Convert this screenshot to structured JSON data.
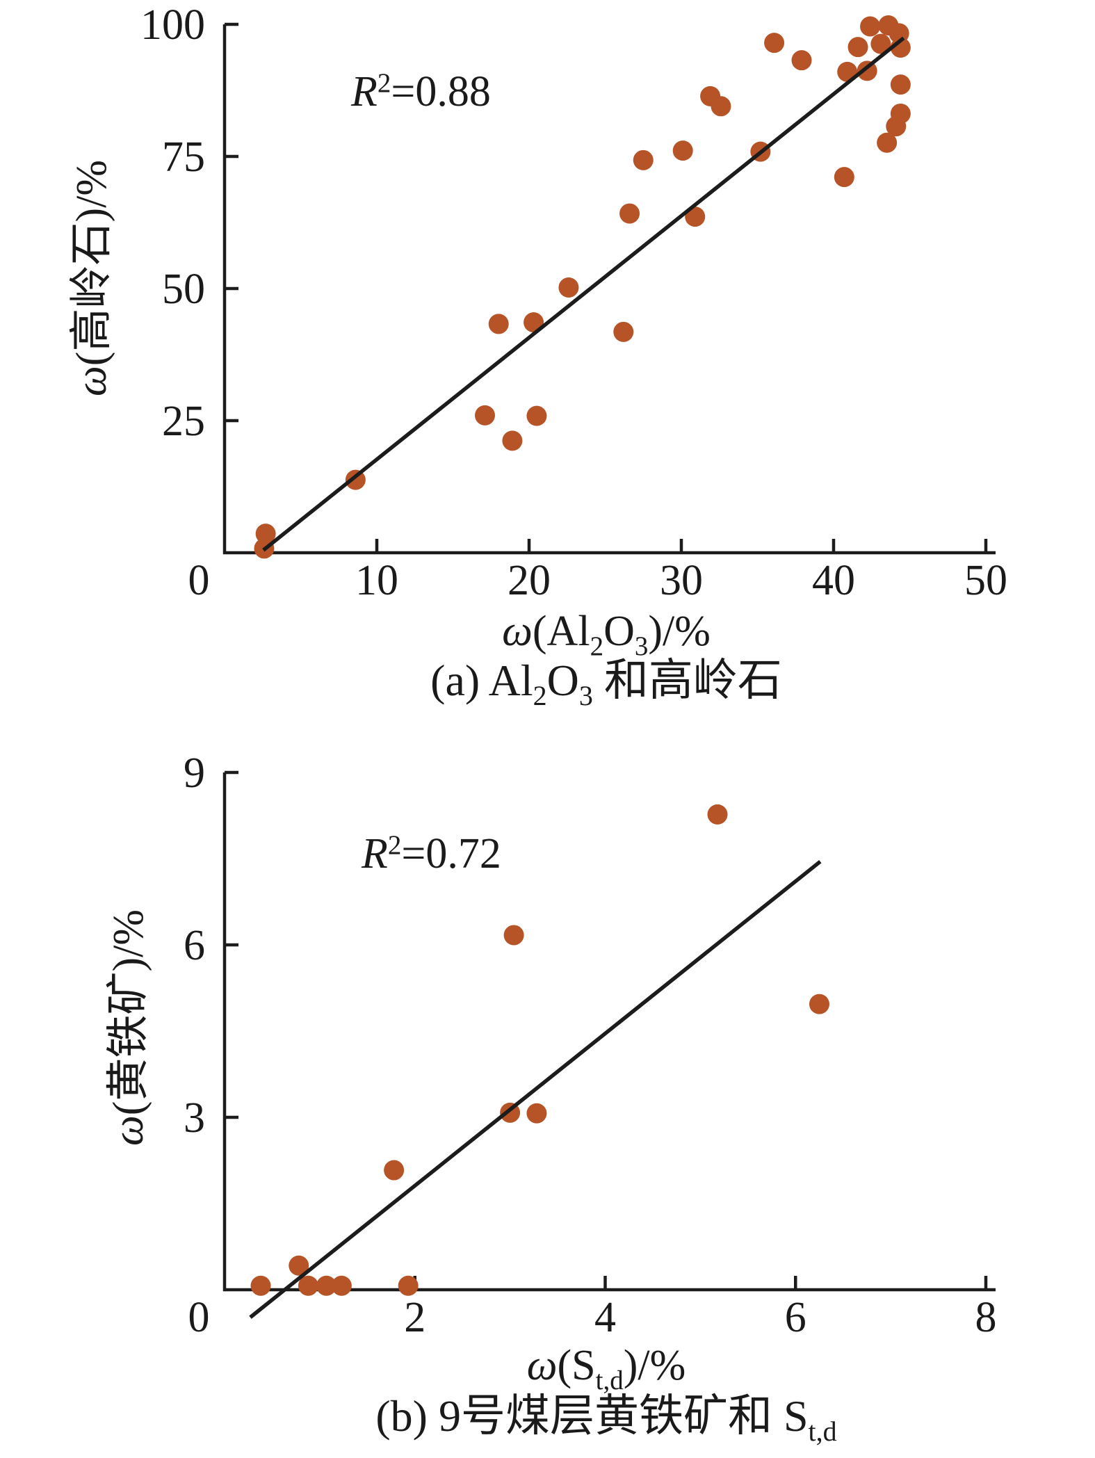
{
  "figure": {
    "background": "#ffffff",
    "text_color": "#1a1a1a"
  },
  "chart_data": [
    {
      "type": "scatter",
      "title": "(a) Al2O3 和高岭石",
      "annotation": "R2=0.88",
      "xlabel": "ω(Al2O3)/%",
      "ylabel": "ω(高岭石)/%",
      "xlim": [
        0,
        50
      ],
      "ylim": [
        0,
        100
      ],
      "xticks": [
        0,
        10,
        20,
        30,
        40,
        50
      ],
      "yticks": [
        25,
        50,
        75,
        100
      ],
      "grid": false,
      "legend": "none",
      "point_color": "#b65327",
      "line_color": "#1c1c1c",
      "points": [
        [
          2.6,
          0.8
        ],
        [
          2.7,
          3.6
        ],
        [
          8.6,
          13.8
        ],
        [
          17.1,
          26.0
        ],
        [
          18.9,
          21.2
        ],
        [
          20.5,
          25.9
        ],
        [
          18.0,
          43.3
        ],
        [
          20.3,
          43.6
        ],
        [
          22.6,
          50.2
        ],
        [
          26.2,
          41.8
        ],
        [
          26.6,
          64.2
        ],
        [
          30.9,
          63.6
        ],
        [
          27.5,
          74.3
        ],
        [
          30.1,
          76.1
        ],
        [
          35.2,
          75.9
        ],
        [
          31.9,
          86.4
        ],
        [
          32.6,
          84.5
        ],
        [
          36.1,
          96.5
        ],
        [
          37.9,
          93.2
        ],
        [
          40.7,
          71.1
        ],
        [
          40.9,
          91.0
        ],
        [
          42.2,
          91.2
        ],
        [
          41.6,
          95.7
        ],
        [
          42.4,
          99.6
        ],
        [
          43.6,
          99.8
        ],
        [
          44.3,
          98.3
        ],
        [
          43.1,
          96.3
        ],
        [
          44.4,
          95.6
        ],
        [
          44.4,
          88.6
        ],
        [
          44.4,
          83.1
        ],
        [
          44.1,
          80.7
        ],
        [
          43.5,
          77.6
        ]
      ],
      "trendline": {
        "x1": 2.55,
        "y1": 0.5,
        "x2": 44.6,
        "y2": 97.4
      },
      "annotation_parts": [
        {
          "t": "R",
          "i": true
        },
        {
          "t": "2",
          "sup": true
        },
        {
          "t": "=0.88"
        }
      ],
      "xlabel_parts": [
        {
          "t": "ω",
          "i": true
        },
        {
          "t": "(Al"
        },
        {
          "t": "2",
          "sub": true
        },
        {
          "t": "O"
        },
        {
          "t": "3",
          "sub": true
        },
        {
          "t": ")/%"
        }
      ],
      "ylabel_parts": [
        {
          "t": "ω",
          "i": true
        },
        {
          "t": "(高岭石)/%"
        }
      ],
      "caption_parts": [
        {
          "t": "(a) Al"
        },
        {
          "t": "2",
          "sub": true
        },
        {
          "t": "O"
        },
        {
          "t": "3",
          "sub": true
        },
        {
          "t": " 和高岭石"
        }
      ]
    },
    {
      "type": "scatter",
      "title": "(b) 9号煤层黄铁矿和 St,d",
      "annotation": "R2=0.72",
      "xlabel": "ω(St,d)/%",
      "ylabel": "ω(黄铁矿)/%",
      "xlim": [
        0,
        8
      ],
      "ylim": [
        0,
        9
      ],
      "xticks": [
        0,
        2,
        4,
        6,
        8
      ],
      "yticks": [
        3,
        6,
        9
      ],
      "grid": false,
      "legend": "none",
      "point_color": "#b65327",
      "line_color": "#1c1c1c",
      "points": [
        [
          0.38,
          0.07
        ],
        [
          0.78,
          0.42
        ],
        [
          0.88,
          0.07
        ],
        [
          1.07,
          0.07
        ],
        [
          1.23,
          0.07
        ],
        [
          1.93,
          0.07
        ],
        [
          1.78,
          2.08
        ],
        [
          3.0,
          3.08
        ],
        [
          3.28,
          3.07
        ],
        [
          3.04,
          6.17
        ],
        [
          5.18,
          8.27
        ],
        [
          6.25,
          4.97
        ]
      ],
      "trendline": {
        "x1": 0.27,
        "y1": -0.48,
        "x2": 6.26,
        "y2": 7.45
      },
      "annotation_parts": [
        {
          "t": "R",
          "i": true
        },
        {
          "t": "2",
          "sup": true
        },
        {
          "t": "=0.72"
        }
      ],
      "xlabel_parts": [
        {
          "t": "ω",
          "i": true
        },
        {
          "t": "(S"
        },
        {
          "t": "t,d",
          "sub": true
        },
        {
          "t": ")/%"
        }
      ],
      "ylabel_parts": [
        {
          "t": "ω",
          "i": true
        },
        {
          "t": "(黄铁矿)/%"
        }
      ],
      "caption_parts": [
        {
          "t": "(b) 9号煤层黄铁矿和 S"
        },
        {
          "t": "t,d",
          "sub": true
        }
      ]
    }
  ]
}
